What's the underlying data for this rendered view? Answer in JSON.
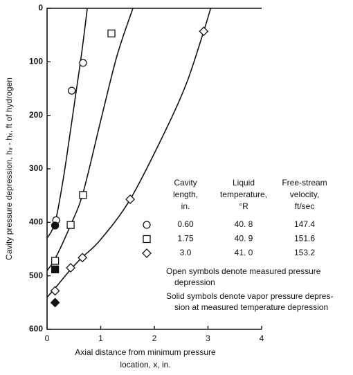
{
  "chart_data": {
    "type": "scatter",
    "xlabel": [
      "Axial distance from minimum pressure",
      "location, x, in."
    ],
    "ylabel": "Cavity pressure depression, hᵥ - hₓ, ft of hydrogen",
    "xlim": [
      0,
      4
    ],
    "xticks": [
      0,
      1,
      2,
      3,
      4
    ],
    "ylim": [
      0,
      600
    ],
    "yticks": [
      0,
      100,
      200,
      300,
      400,
      500,
      600
    ],
    "y_inverted": true,
    "color": "#111111",
    "legend_headers": [
      [
        "Cavity",
        "length,",
        "in."
      ],
      [
        "Liquid",
        "temperature,",
        "°R"
      ],
      [
        "Free-stream",
        "velocity,",
        "ft/sec"
      ]
    ],
    "series": [
      {
        "name": "0.60",
        "marker": "circle",
        "temperature": "40. 8",
        "velocity": 147.4,
        "open": {
          "x": [
            0.67,
            0.46,
            0.17
          ],
          "values": [
            102,
            154,
            396
          ]
        },
        "solid": {
          "x": [
            0.15
          ],
          "values": [
            406
          ]
        },
        "curve": {
          "x": [
            0,
            0.15,
            0.3,
            0.42,
            0.55,
            0.65,
            0.75
          ],
          "values": [
            430,
            400,
            320,
            240,
            150,
            80,
            0
          ]
        }
      },
      {
        "name": "1.75",
        "marker": "square",
        "temperature": "40. 9",
        "velocity": 151.6,
        "open": {
          "x": [
            1.2,
            0.67,
            0.44,
            0.15
          ],
          "values": [
            47,
            349,
            405,
            472
          ]
        },
        "solid": {
          "x": [
            0.15
          ],
          "values": [
            488
          ]
        },
        "curve": {
          "x": [
            0,
            0.15,
            0.44,
            0.67,
            1.0,
            1.3,
            1.6
          ],
          "values": [
            490,
            468,
            405,
            345,
            210,
            90,
            0
          ]
        }
      },
      {
        "name": "3.0",
        "marker": "diamond",
        "temperature": "41. 0",
        "velocity": 153.2,
        "open": {
          "x": [
            2.92,
            1.55,
            0.66,
            0.44,
            0.15
          ],
          "values": [
            43,
            357,
            466,
            485,
            528
          ]
        },
        "solid": {
          "x": [
            0.15
          ],
          "values": [
            550
          ]
        },
        "curve": {
          "x": [
            0,
            0.15,
            0.44,
            0.66,
            1.0,
            1.55,
            2.2,
            2.6,
            2.92,
            3.05
          ],
          "values": [
            540,
            523,
            488,
            465,
            432,
            357,
            230,
            140,
            43,
            0
          ]
        }
      }
    ],
    "annotations": [
      [
        "Open symbols denote measured pressure",
        "depression"
      ],
      [
        "Solid symbols denote vapor pressure depres-",
        "sion at measured temperature depression"
      ]
    ]
  }
}
